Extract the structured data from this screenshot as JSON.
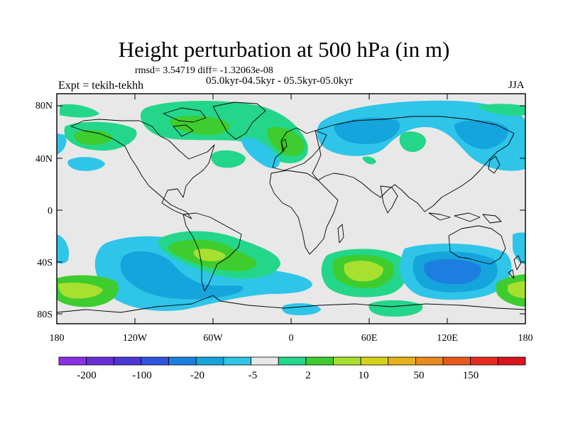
{
  "title": "Height perturbation at 500 hPa (in m)",
  "stats": "rmsd= 3.54719 diff= -1.32063e-08",
  "period": "05.0kyr-04.5kyr - 05.5kyr-05.0kyr",
  "experiment": "Expt = tekih-tekhh",
  "season": "JJA",
  "lat_ticks": [
    "80N",
    "40N",
    "0",
    "40S",
    "80S"
  ],
  "lon_ticks": [
    "180",
    "120W",
    "60W",
    "0",
    "60E",
    "120E",
    "180"
  ],
  "colorbar": {
    "colors": [
      "#8c30e6",
      "#6a2ed8",
      "#4a37d6",
      "#2f55e0",
      "#1c7fe0",
      "#15a4dc",
      "#2ec5e8",
      "#e8e8e8",
      "#24d68a",
      "#3fcc2e",
      "#a8e030",
      "#d6d21c",
      "#e6b21a",
      "#e88a1c",
      "#e85a1c",
      "#e62b1c",
      "#d8141c"
    ],
    "labels": [
      "-200",
      "-100",
      "-20",
      "-5",
      "2",
      "10",
      "50",
      "150"
    ]
  },
  "colors": {
    "background_field": "#e8e8e8",
    "cyan": "#2ec5e8",
    "blue": "#15a4dc",
    "deep_blue": "#1c7fe0",
    "teal_green": "#24d68a",
    "green": "#3fcc2e",
    "yellow_green": "#a8e030"
  }
}
